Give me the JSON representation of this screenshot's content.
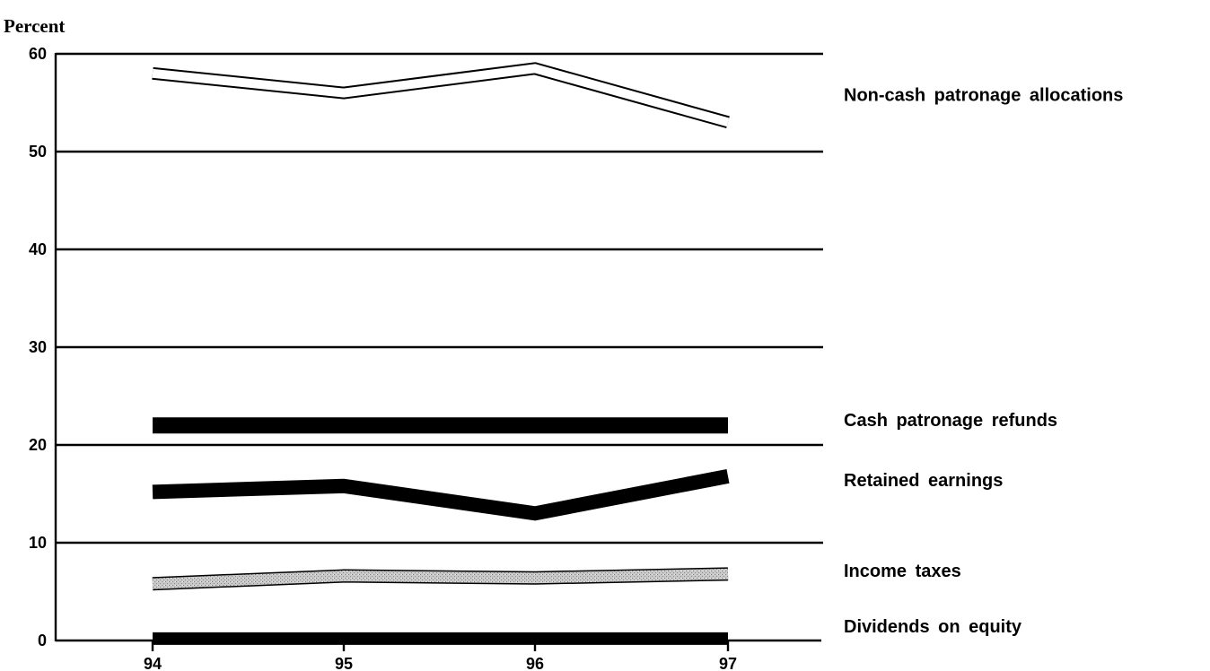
{
  "chart_data": {
    "type": "line",
    "ylabel": "Percent",
    "xlabel": "",
    "title": "",
    "categories": [
      "94",
      "95",
      "96",
      "97"
    ],
    "ylim": [
      0,
      60
    ],
    "yticks": [
      "0",
      "10",
      "20",
      "30",
      "40",
      "50",
      "60"
    ],
    "grid": "horizontal",
    "legend_placement": "right",
    "series": [
      {
        "name": "Non-cash patronage allocations",
        "values": [
          58,
          56,
          58.5,
          53
        ],
        "style": "hollow",
        "color": "#000000"
      },
      {
        "name": "Cash patronage refunds",
        "values": [
          22,
          22,
          22,
          22
        ],
        "style": "solid",
        "color": "#000000"
      },
      {
        "name": "Retained earnings",
        "values": [
          15.2,
          15.8,
          13,
          16.8
        ],
        "style": "solid",
        "color": "#000000"
      },
      {
        "name": "Income taxes",
        "values": [
          5.8,
          6.6,
          6.4,
          6.8
        ],
        "style": "stippled",
        "color": "#bdbdbd"
      },
      {
        "name": "Dividends on equity",
        "values": [
          0.2,
          0.2,
          0.2,
          0.2
        ],
        "style": "solid",
        "color": "#000000"
      }
    ]
  }
}
